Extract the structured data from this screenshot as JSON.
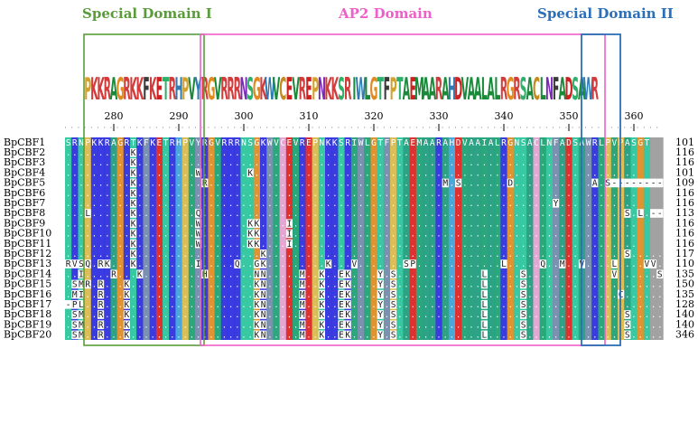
{
  "domains": [
    {
      "label": "Special Domain I",
      "color": "#5a9c3a"
    },
    {
      "label": "AP2 Domain",
      "color": "#ee5fc9"
    },
    {
      "label": "Special Domain II",
      "color": "#2b6fb8"
    }
  ],
  "logo": {
    "sequence": "PKKRAGRKKFKETRHPVYRGVRRRNSGKWVCEVREPNKKSRIWLGTFPTAEMAARAHDVAALALRGRSACLNFADSAWR"
  },
  "ruler": {
    "ticks": [
      "280",
      "290",
      "300",
      "310",
      "320",
      "330",
      "340",
      "350",
      "360"
    ]
  },
  "alignment": {
    "rows": [
      {
        "name": "BpCBF1",
        "seq": "SRNPKKRAGRTKFKETRHPVYRGVRRRNSGKWVCEVREPNKKSRIWLGTFPTAEMAARAHDVAAIALRGNSACLNFADSAWRLPVPASGT",
        "count": "101"
      },
      {
        "name": "BpCBF2",
        "seq": "..........K.............................................................................",
        "count": "116"
      },
      {
        "name": "BpCBF3",
        "seq": "..........K.............................................................................",
        "count": "116"
      },
      {
        "name": "BpCBF4",
        "seq": "..........K.........W.......K...........................................................",
        "count": "101"
      },
      {
        "name": "BpCBF5",
        "seq": "..........K..........R....................................M.S.......D............A.S--------",
        "count": "109"
      },
      {
        "name": "BpCBF6",
        "seq": "..........K.............................................................................",
        "count": "116"
      },
      {
        "name": "BpCBF7",
        "seq": "..........K................................................................Y............",
        "count": "116"
      },
      {
        "name": "BpCBF8",
        "seq": "...L......K.........Q.................................................................S.L.---M",
        "count": "113"
      },
      {
        "name": "BpCBF9",
        "seq": "..........K.........W.......KK....I.....................................................",
        "count": "116"
      },
      {
        "name": "BpCBF10",
        "seq": "..........K.........W.......KK....I.....................................................",
        "count": "116"
      },
      {
        "name": "BpCBF11",
        "seq": "..........K.........W.......KK....I.....................................................",
        "count": "116"
      },
      {
        "name": "BpCBF12",
        "seq": "..........K...................K.......................................................S.....V.",
        "count": "117"
      },
      {
        "name": "BpCBF13",
        "seq": "RVSQ.RK...K.........I.....Q..GK.........K...V.......SP.............L.....Q..M..V....L....VV.RAKSS",
        "count": "110"
      },
      {
        "name": "BpCBF14",
        "seq": "..I....R...K.........H.......NN.....M..K..EK....Y.S.............L.....S.............V......S..TD",
        "count": "135"
      },
      {
        "name": "BpCBF15",
        "seq": ".SMR.R...K...................KN.....M..K..EK....Y.S.............L.....S.......................TD",
        "count": "150"
      },
      {
        "name": "BpCBF16",
        "seq": ".MI..R...K...................KN.....M..K..EK....Y.S.............L.....S..............C........TD",
        "count": "135"
      },
      {
        "name": "BpCBF17",
        "seq": "-PL..R...K...................KN.....M..K..EK....Y.S.............L.....S.......................TD",
        "count": "128"
      },
      {
        "name": "BpCBF18",
        "seq": ".SM..R...K...................KN.....M..K..EK....Y.S.............L.....S...............S.......TD",
        "count": "140"
      },
      {
        "name": "BpCBF19",
        "seq": ".SM..R...K...................KN.....M..K..EK....Y.S.............L.....S...............S.......TD",
        "count": "140"
      },
      {
        "name": "BpCBF20",
        "seq": ".SM..R...K...................KN.....M..K..EK....Y.S.............L.....S...............S.......TD",
        "count": "346"
      }
    ]
  }
}
